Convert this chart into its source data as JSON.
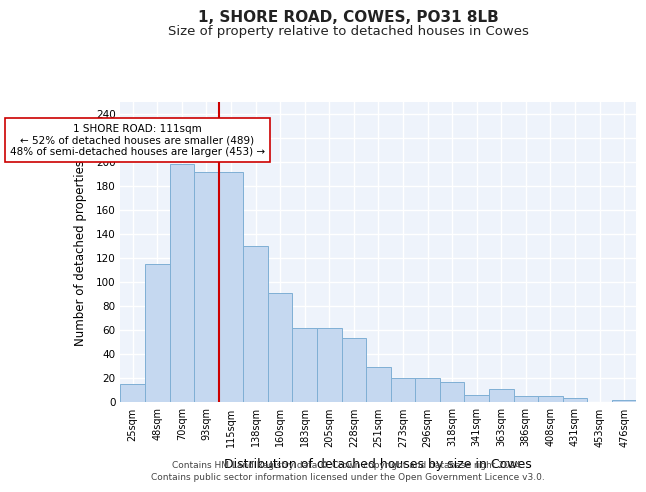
{
  "title": "1, SHORE ROAD, COWES, PO31 8LB",
  "subtitle": "Size of property relative to detached houses in Cowes",
  "xlabel": "Distribution of detached houses by size in Cowes",
  "ylabel": "Number of detached properties",
  "bar_labels": [
    "25sqm",
    "48sqm",
    "70sqm",
    "93sqm",
    "115sqm",
    "138sqm",
    "160sqm",
    "183sqm",
    "205sqm",
    "228sqm",
    "251sqm",
    "273sqm",
    "296sqm",
    "318sqm",
    "341sqm",
    "363sqm",
    "386sqm",
    "408sqm",
    "431sqm",
    "453sqm",
    "476sqm"
  ],
  "bar_values": [
    15,
    115,
    198,
    192,
    192,
    130,
    91,
    62,
    62,
    53,
    29,
    20,
    20,
    17,
    6,
    11,
    5,
    5,
    3,
    0,
    2
  ],
  "bar_color": "#c5d8f0",
  "bar_edge_color": "#7fafd4",
  "background_color": "#eef3fb",
  "grid_color": "#ffffff",
  "vline_x_index": 4,
  "vline_color": "#cc0000",
  "annotation_text": "1 SHORE ROAD: 111sqm\n← 52% of detached houses are smaller (489)\n48% of semi-detached houses are larger (453) →",
  "annotation_box_color": "#ffffff",
  "annotation_box_edge": "#cc0000",
  "ylim": [
    0,
    250
  ],
  "yticks": [
    0,
    20,
    40,
    60,
    80,
    100,
    120,
    140,
    160,
    180,
    200,
    220,
    240
  ],
  "footer_line1": "Contains HM Land Registry data © Crown copyright and database right 2024.",
  "footer_line2": "Contains public sector information licensed under the Open Government Licence v3.0."
}
